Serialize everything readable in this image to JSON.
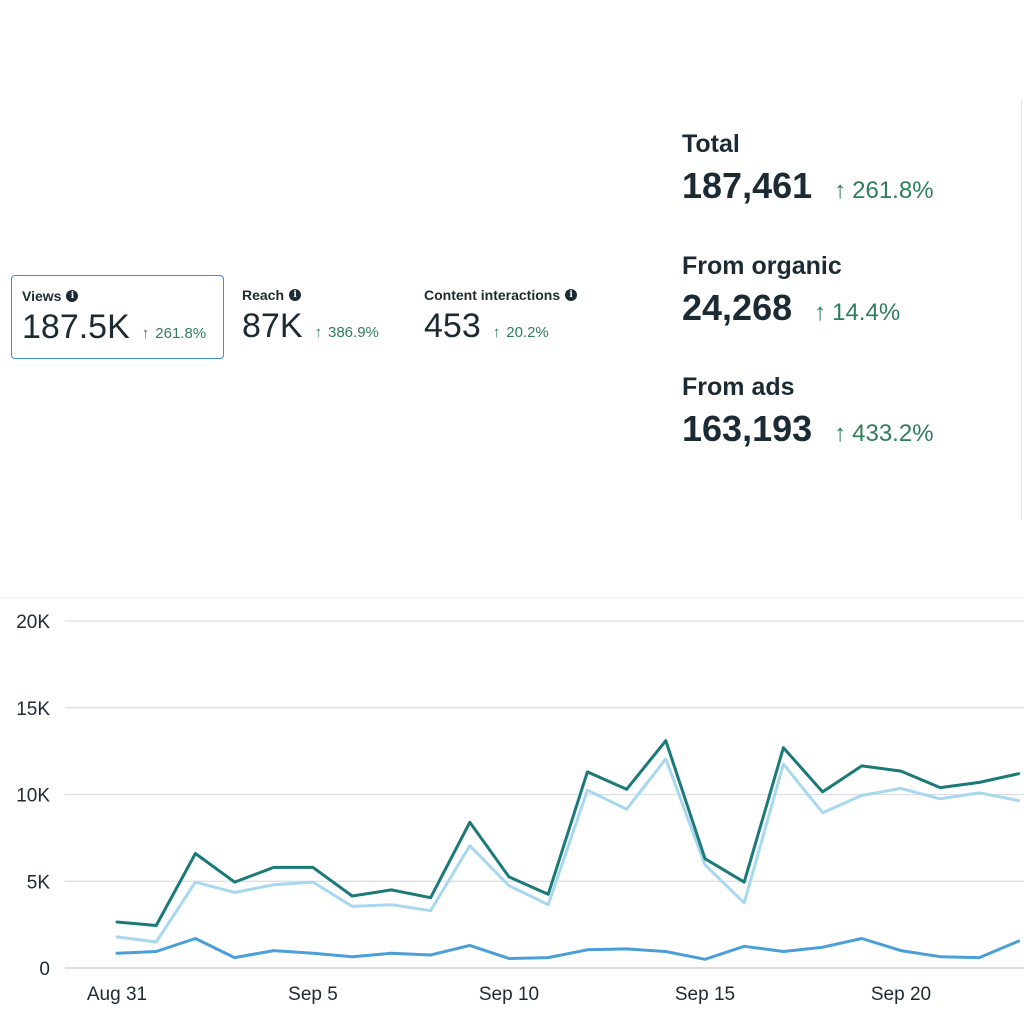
{
  "metrics": [
    {
      "name": "Views",
      "value": "187.5K",
      "change": "261.8%"
    },
    {
      "name": "Reach",
      "value": "87K",
      "change": "386.9%"
    },
    {
      "name": "Content interactions",
      "value": "453",
      "change": "20.2%"
    }
  ],
  "info_icon": "i",
  "arrow": "↑",
  "summary": [
    {
      "label": "Total",
      "value": "187,461",
      "change": "261.8%"
    },
    {
      "label": "From organic",
      "value": "24,268",
      "change": "14.4%"
    },
    {
      "label": "From ads",
      "value": "163,193",
      "change": "433.2%"
    }
  ],
  "colors": {
    "total": "#1a7a78",
    "ads": "#a8d8f0",
    "organic": "#4a9fd8",
    "up": "#2e7d5b"
  },
  "chart_data": {
    "type": "line",
    "x": [
      "Aug 31",
      "Sep 1",
      "Sep 2",
      "Sep 3",
      "Sep 4",
      "Sep 5",
      "Sep 6",
      "Sep 7",
      "Sep 8",
      "Sep 9",
      "Sep 10",
      "Sep 11",
      "Sep 12",
      "Sep 13",
      "Sep 14",
      "Sep 15",
      "Sep 16",
      "Sep 17",
      "Sep 18",
      "Sep 19",
      "Sep 20",
      "Sep 21",
      "Sep 22",
      "Sep 23"
    ],
    "x_ticks": [
      "Aug 31",
      "Sep 5",
      "Sep 10",
      "Sep 15",
      "Sep 20"
    ],
    "y_ticks": [
      "0",
      "5K",
      "10K",
      "15K",
      "20K"
    ],
    "ylim": [
      0,
      20000
    ],
    "grid": true,
    "series": [
      {
        "key": "total",
        "values": [
          2650,
          2450,
          6600,
          4950,
          5800,
          5800,
          4150,
          4500,
          4050,
          8400,
          5250,
          4250,
          11300,
          10300,
          13100,
          6300,
          4950,
          12700,
          10150,
          11650,
          11350,
          10400,
          10700,
          11200
        ]
      },
      {
        "key": "ads",
        "values": [
          1800,
          1500,
          4950,
          4350,
          4800,
          4950,
          3550,
          3650,
          3300,
          7050,
          4750,
          3650,
          10250,
          9150,
          12050,
          5950,
          3750,
          11750,
          8950,
          9950,
          10350,
          9750,
          10100,
          9650
        ]
      },
      {
        "key": "organic",
        "values": [
          850,
          950,
          1700,
          600,
          1000,
          850,
          650,
          850,
          750,
          1300,
          550,
          600,
          1050,
          1100,
          950,
          500,
          1250,
          950,
          1200,
          1700,
          1000,
          650,
          600,
          1550
        ]
      }
    ]
  }
}
